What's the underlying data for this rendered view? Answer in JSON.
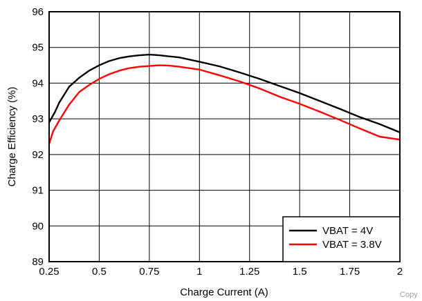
{
  "chart_data": {
    "type": "line",
    "xlabel": "Charge Current (A)",
    "ylabel": "Charge Efficiency (%)",
    "xlim": [
      0.25,
      2
    ],
    "ylim": [
      89,
      96
    ],
    "xticks": [
      "0.25",
      "0.5",
      "0.75",
      "1",
      "1.25",
      "1.5",
      "1.75",
      "2"
    ],
    "yticks": [
      "89",
      "90",
      "91",
      "92",
      "93",
      "94",
      "95",
      "96"
    ],
    "grid": true,
    "legend_position": "bottom-right",
    "series": [
      {
        "name": "VBAT = 4V",
        "color": "#000000",
        "x": [
          0.25,
          0.28,
          0.3,
          0.35,
          0.4,
          0.45,
          0.5,
          0.55,
          0.6,
          0.65,
          0.7,
          0.75,
          0.8,
          0.85,
          0.9,
          1.0,
          1.1,
          1.2,
          1.3,
          1.4,
          1.5,
          1.6,
          1.7,
          1.8,
          1.9,
          2.0
        ],
        "y": [
          92.9,
          93.2,
          93.45,
          93.9,
          94.15,
          94.35,
          94.5,
          94.62,
          94.7,
          94.75,
          94.78,
          94.8,
          94.78,
          94.75,
          94.72,
          94.6,
          94.47,
          94.3,
          94.12,
          93.92,
          93.72,
          93.5,
          93.28,
          93.05,
          92.85,
          92.62
        ]
      },
      {
        "name": "VBAT = 3.8V",
        "color": "#ff0000",
        "x": [
          0.25,
          0.27,
          0.3,
          0.35,
          0.4,
          0.45,
          0.5,
          0.55,
          0.6,
          0.65,
          0.7,
          0.75,
          0.8,
          0.85,
          0.9,
          1.0,
          1.1,
          1.2,
          1.3,
          1.4,
          1.5,
          1.6,
          1.7,
          1.8,
          1.9,
          2.0
        ],
        "y": [
          92.3,
          92.65,
          92.95,
          93.4,
          93.75,
          93.95,
          94.12,
          94.25,
          94.35,
          94.42,
          94.46,
          94.48,
          94.5,
          94.49,
          94.46,
          94.38,
          94.22,
          94.05,
          93.85,
          93.62,
          93.42,
          93.2,
          92.97,
          92.73,
          92.5,
          92.42
        ]
      }
    ]
  },
  "watermark": "Copy"
}
